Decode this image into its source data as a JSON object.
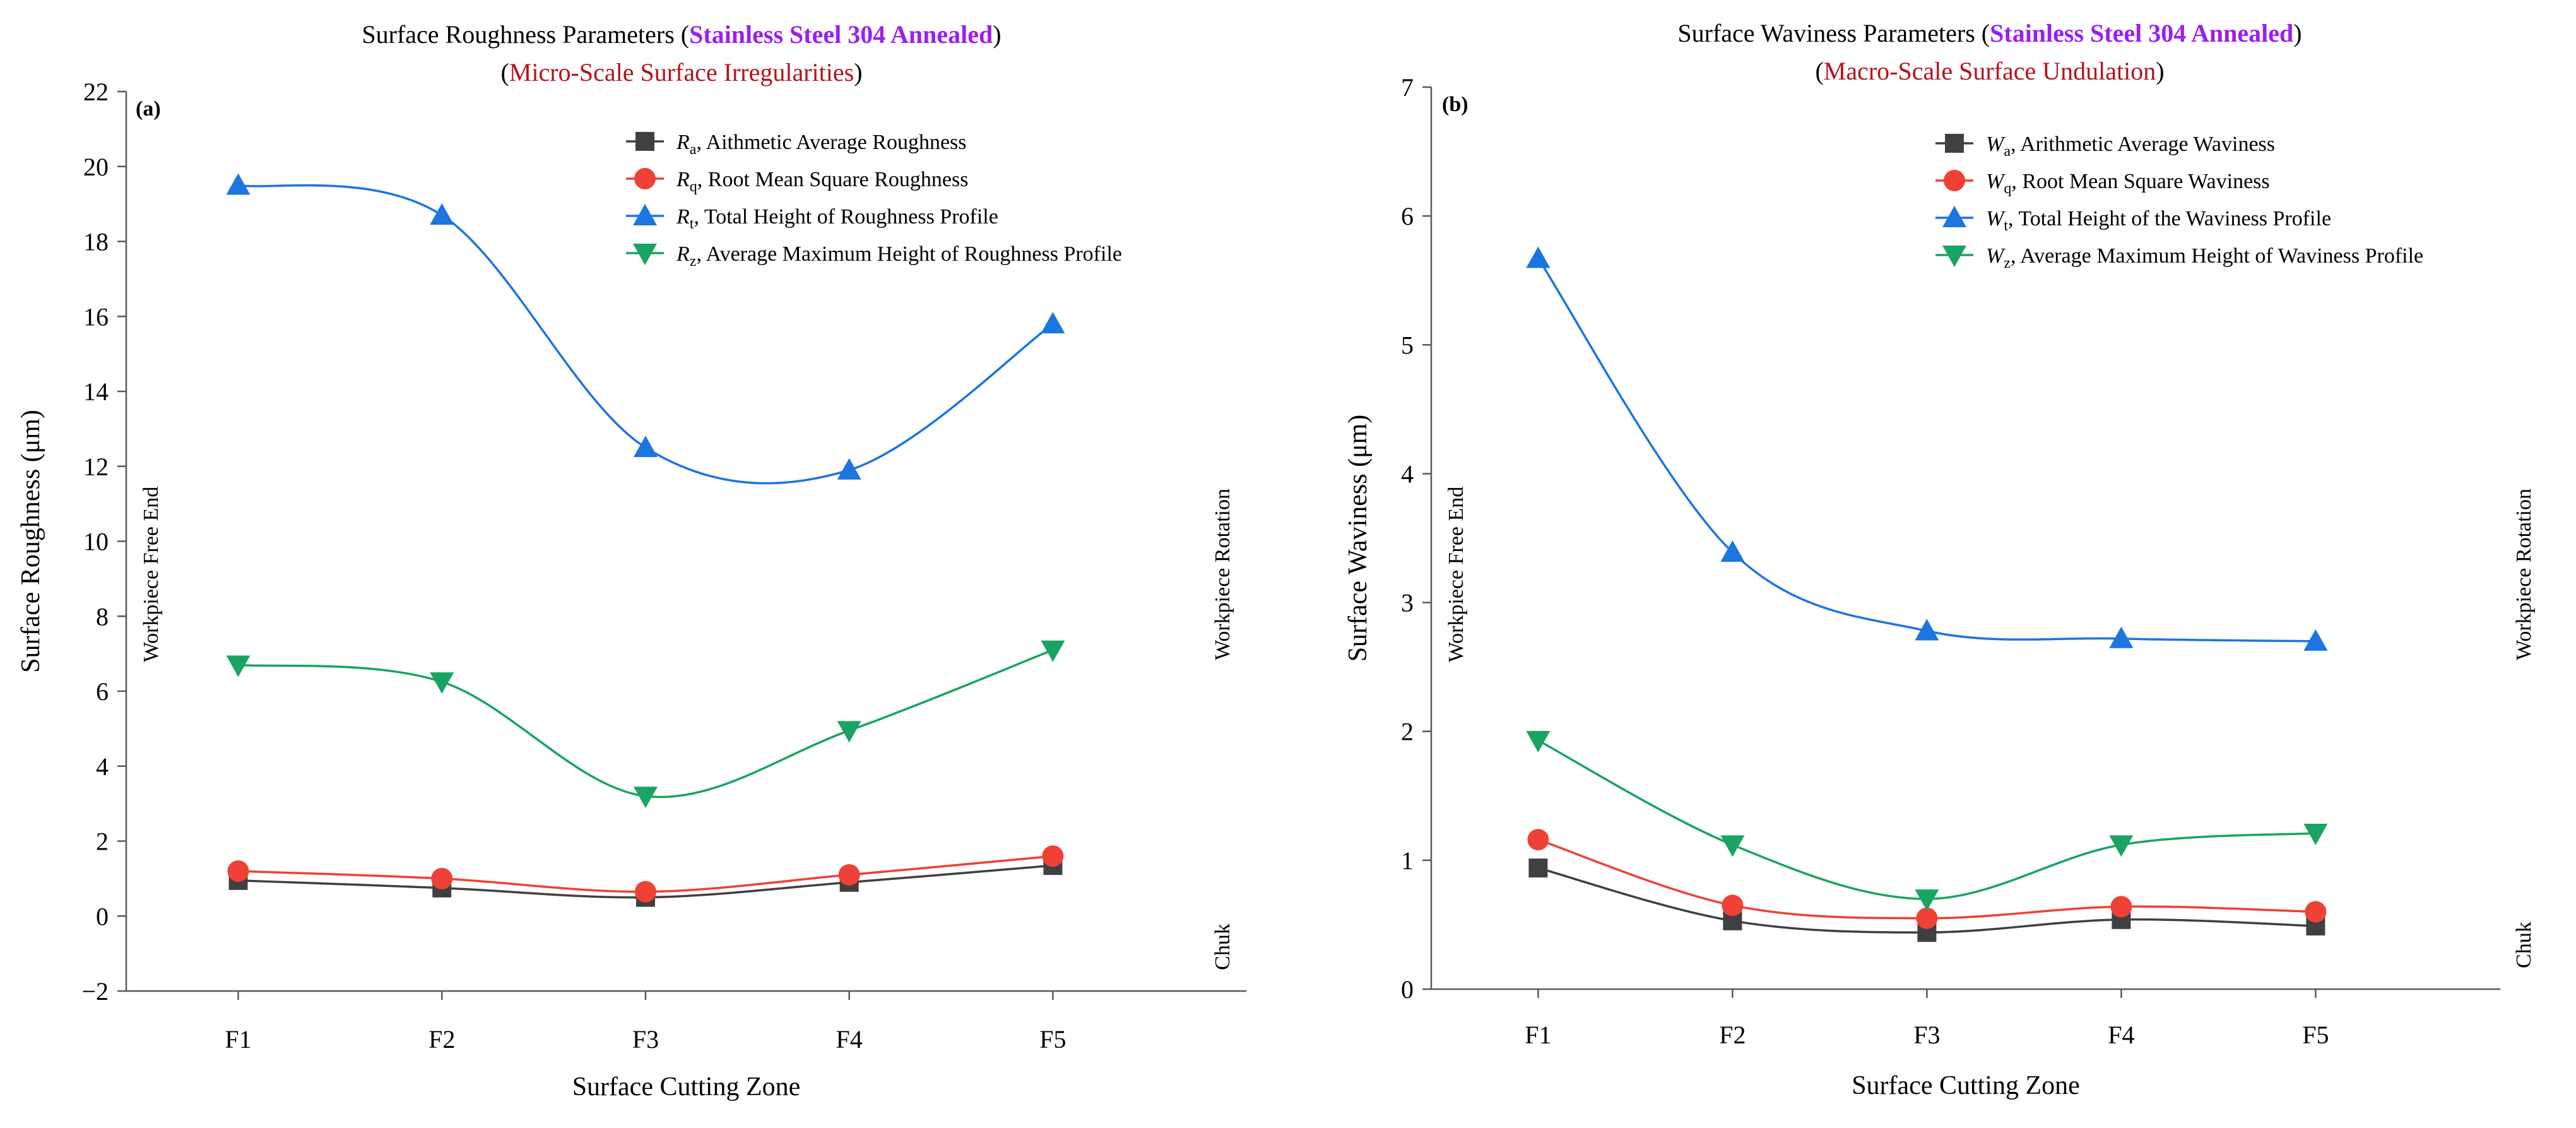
{
  "colors": {
    "ra": "#404040",
    "rq": "#ef4136",
    "rt": "#1c75e0",
    "rz": "#19a463",
    "highlight_purple": "#9b1ff0",
    "highlight_red": "#b5121b",
    "axis": "#595959"
  },
  "chart_data": [
    {
      "type": "line",
      "panel_label": "(a)",
      "title": {
        "prefix": "Surface Roughness Parameters (",
        "highlight": "Stainless Steel 304 Annealed",
        "suffix": ")",
        "line2_prefix": "(",
        "line2_highlight": "Micro-Scale Surface Irregularities",
        "line2_suffix": ")"
      },
      "xlabel": "Surface Cutting Zone",
      "ylabel": "Surface Roughness (μm)",
      "categories": [
        "F1",
        "F2",
        "F3",
        "F4",
        "F5"
      ],
      "ylim": [
        -2,
        22
      ],
      "yticks": [
        -2,
        0,
        2,
        4,
        6,
        8,
        10,
        12,
        14,
        16,
        18,
        20,
        22
      ],
      "ytick_labels": [
        "−2",
        "0",
        "2",
        "4",
        "6",
        "8",
        "10",
        "12",
        "14",
        "16",
        "18",
        "20",
        "22"
      ],
      "side_annotations": {
        "left": "Workpiece Free End",
        "right_top": "Workpiece Rotation",
        "right_bottom": "Chuk"
      },
      "legend_position": "top-right",
      "series": [
        {
          "key": "ra",
          "symbol": "R",
          "sub": "a",
          "name": ", Aithmetic Average Roughness",
          "marker": "square",
          "values": [
            0.95,
            0.75,
            0.5,
            0.9,
            1.35
          ]
        },
        {
          "key": "rq",
          "symbol": "R",
          "sub": "q",
          "name": ", Root Mean Square Roughness",
          "marker": "circle",
          "values": [
            1.2,
            1.0,
            0.65,
            1.1,
            1.6
          ]
        },
        {
          "key": "rt",
          "symbol": "R",
          "sub": "t",
          "name": ", Total Height of Roughness Profile",
          "marker": "triangle-up",
          "values": [
            19.5,
            18.7,
            12.5,
            11.9,
            15.8
          ]
        },
        {
          "key": "rz",
          "symbol": "R",
          "sub": "z",
          "name": ", Average Maximum Height of Roughness Profile",
          "marker": "triangle-down",
          "values": [
            6.7,
            6.25,
            3.2,
            4.95,
            7.1
          ]
        }
      ]
    },
    {
      "type": "line",
      "panel_label": "(b)",
      "title": {
        "prefix": "Surface Waviness Parameters (",
        "highlight": "Stainless Steel 304 Annealed",
        "suffix": ")",
        "line2_prefix": "(",
        "line2_highlight": "Macro-Scale Surface Undulation",
        "line2_suffix": ")"
      },
      "xlabel": "Surface Cutting Zone",
      "ylabel": "Surface Waviness (μm)",
      "categories": [
        "F1",
        "F2",
        "F3",
        "F4",
        "F5"
      ],
      "ylim": [
        0,
        7
      ],
      "yticks": [
        0,
        1,
        2,
        3,
        4,
        5,
        6,
        7
      ],
      "ytick_labels": [
        "0",
        "1",
        "2",
        "3",
        "4",
        "5",
        "6",
        "7"
      ],
      "side_annotations": {
        "left": "Workpiece Free End",
        "right_top": "Workpiece Rotation",
        "right_bottom": "Chuk"
      },
      "legend_position": "top-right",
      "series": [
        {
          "key": "ra",
          "symbol": "W",
          "sub": "a",
          "name": ", Arithmetic Average Waviness",
          "marker": "square",
          "values": [
            0.94,
            0.53,
            0.44,
            0.54,
            0.49
          ]
        },
        {
          "key": "rq",
          "symbol": "W",
          "sub": "q",
          "name": ", Root Mean Square Waviness",
          "marker": "circle",
          "values": [
            1.16,
            0.65,
            0.55,
            0.64,
            0.6
          ]
        },
        {
          "key": "rt",
          "symbol": "W",
          "sub": "t",
          "name": ", Total Height of the Waviness Profile",
          "marker": "triangle-up",
          "values": [
            5.67,
            3.39,
            2.78,
            2.72,
            2.7
          ]
        },
        {
          "key": "rz",
          "symbol": "W",
          "sub": "z",
          "name": ", Average Maximum Height of Waviness Profile",
          "marker": "triangle-down",
          "values": [
            1.93,
            1.12,
            0.7,
            1.12,
            1.21
          ]
        }
      ]
    }
  ]
}
